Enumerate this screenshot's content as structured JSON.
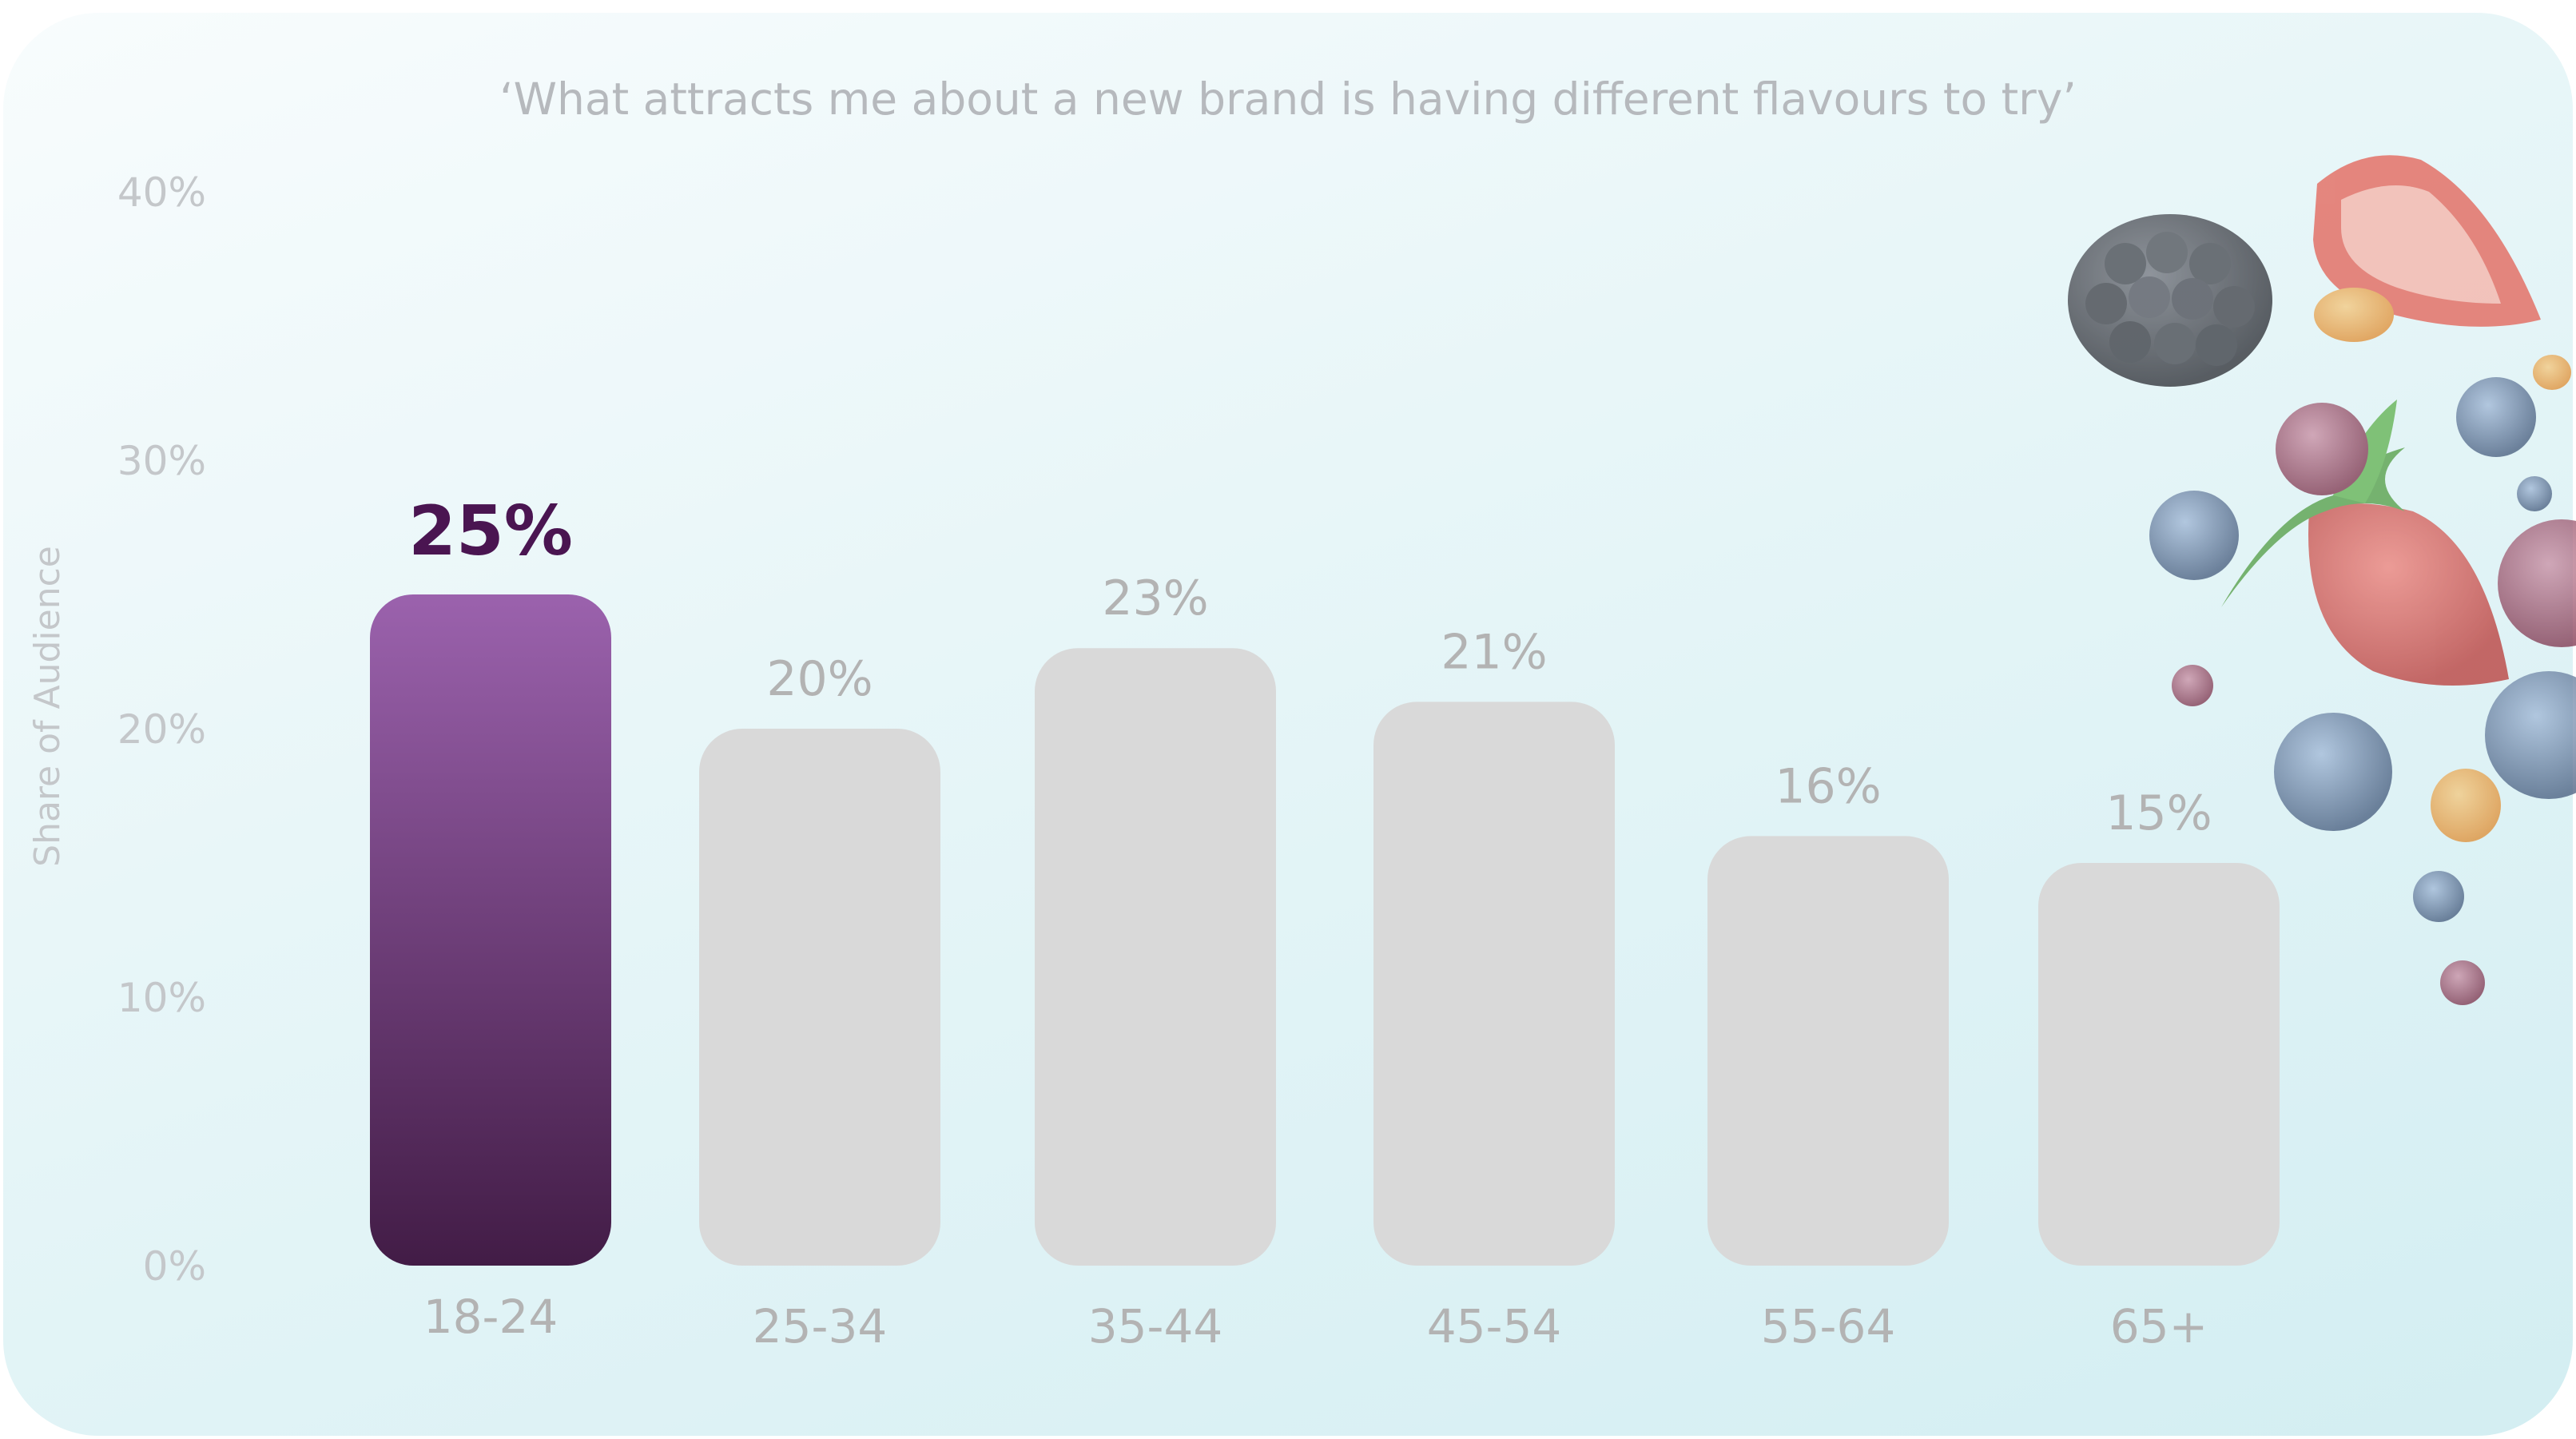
{
  "chart_data": {
    "type": "bar",
    "title": "‘What attracts me about a new brand is having different flavours to try’",
    "ylabel": "Share of Audience",
    "categories": [
      "18-24",
      "25-34",
      "35-44",
      "45-54",
      "55-64",
      "65+"
    ],
    "values": [
      25,
      20,
      23,
      21,
      16,
      15
    ],
    "value_labels": [
      "25%",
      "20%",
      "23%",
      "21%",
      "16%",
      "15%"
    ],
    "yticks": [
      "0%",
      "10%",
      "20%",
      "30%",
      "40%"
    ],
    "ytick_values": [
      0,
      10,
      20,
      30,
      40
    ],
    "ylim": [
      0,
      40
    ],
    "highlight_index": 0,
    "grid": false,
    "legend": "none",
    "colors": {
      "highlight_top": "#9b62ad",
      "highlight_bottom": "#421c46",
      "bar": "#d9d9d9",
      "label": "#b3b3b3",
      "highlight_label": "#4a1551",
      "axis_text": "#c4c7ca"
    }
  },
  "decoration": {
    "icons": [
      "blackberry-icon",
      "strawberry-icon",
      "blueberry-icon",
      "cranberry-icon",
      "sea-buckthorn-icon"
    ]
  }
}
